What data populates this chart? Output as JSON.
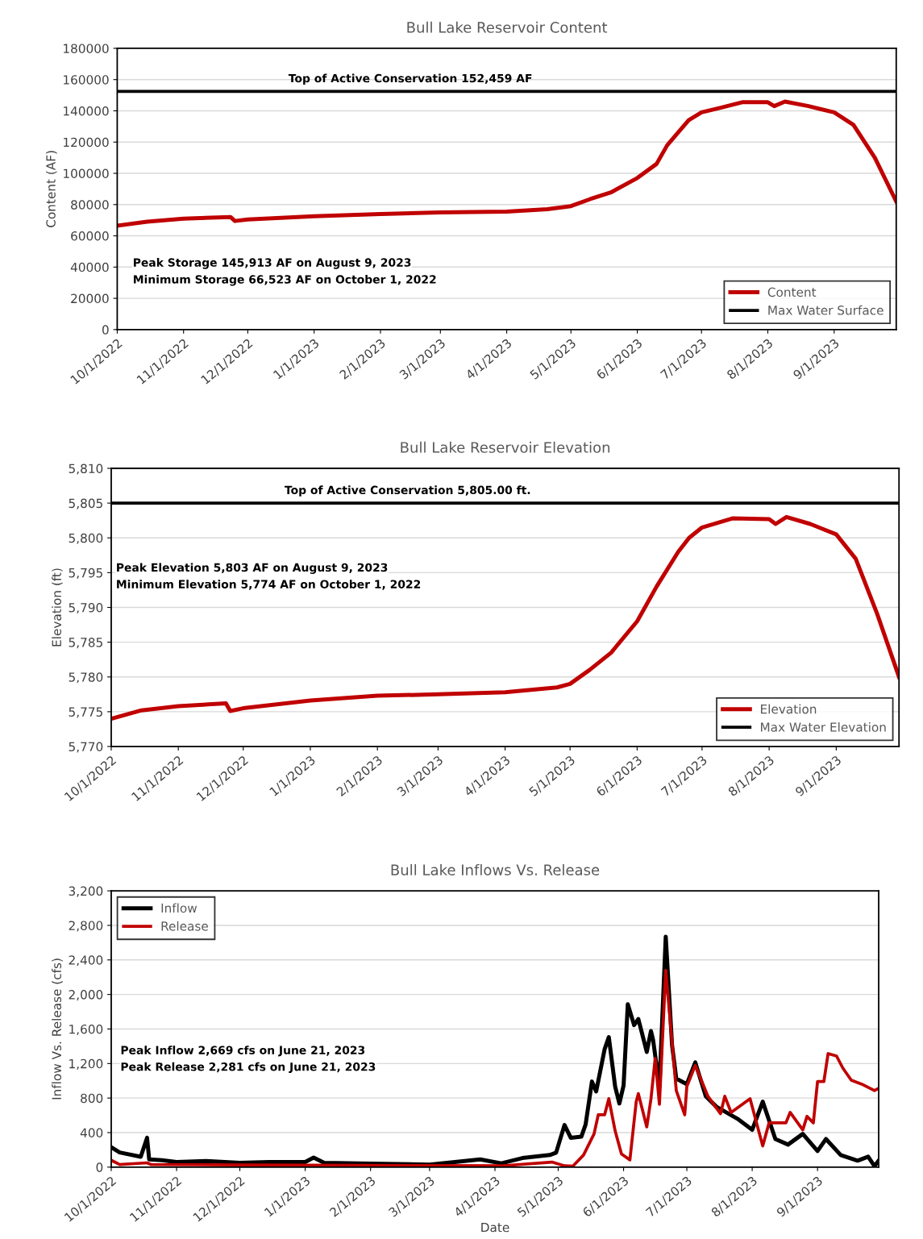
{
  "chart_data": [
    {
      "type": "line",
      "title": "Bull Lake Reservoir Content",
      "ylabel": "Content (AF)",
      "xlim": [
        "2022-10-01",
        "2023-09-30"
      ],
      "xticks": [
        {
          "value": "2022-10-01",
          "label": "10/1/2022"
        },
        {
          "value": "2022-11-01",
          "label": "11/1/2022"
        },
        {
          "value": "2022-12-01",
          "label": "12/1/2022"
        },
        {
          "value": "2023-01-01",
          "label": "1/1/2023"
        },
        {
          "value": "2023-02-01",
          "label": "2/1/2023"
        },
        {
          "value": "2023-03-01",
          "label": "3/1/2023"
        },
        {
          "value": "2023-04-01",
          "label": "4/1/2023"
        },
        {
          "value": "2023-05-01",
          "label": "5/1/2023"
        },
        {
          "value": "2023-06-01",
          "label": "6/1/2023"
        },
        {
          "value": "2023-07-01",
          "label": "7/1/2023"
        },
        {
          "value": "2023-08-01",
          "label": "8/1/2023"
        },
        {
          "value": "2023-09-01",
          "label": "9/1/2023"
        }
      ],
      "ylim": [
        0,
        180000
      ],
      "yticks": [
        0,
        20000,
        40000,
        60000,
        80000,
        100000,
        120000,
        140000,
        160000,
        180000
      ],
      "grid": "y",
      "legend": "bottom right",
      "line_style": "solid",
      "series": [
        {
          "name": "Content",
          "color": "#c00000",
          "x": [
            "2022-10-01",
            "2022-10-15",
            "2022-11-01",
            "2022-11-23",
            "2022-11-25",
            "2022-12-01",
            "2023-01-01",
            "2023-02-01",
            "2023-03-01",
            "2023-04-01",
            "2023-04-20",
            "2023-05-01",
            "2023-05-10",
            "2023-05-20",
            "2023-06-01",
            "2023-06-10",
            "2023-06-15",
            "2023-06-20",
            "2023-06-25",
            "2023-07-01",
            "2023-07-10",
            "2023-07-20",
            "2023-08-01",
            "2023-08-04",
            "2023-08-09",
            "2023-08-20",
            "2023-09-01",
            "2023-09-10",
            "2023-09-20",
            "2023-09-30"
          ],
          "values": [
            66523,
            69000,
            71000,
            72000,
            69500,
            70500,
            72500,
            74000,
            75000,
            75500,
            77000,
            79000,
            83500,
            88000,
            97000,
            106000,
            118000,
            126000,
            134000,
            139000,
            142000,
            145500,
            145500,
            143000,
            145913,
            143000,
            139000,
            131000,
            110000,
            82000
          ]
        },
        {
          "name": "Max Water Surface",
          "color": "#000000",
          "x": [
            "2022-10-01",
            "2023-09-30"
          ],
          "values": [
            152459,
            152459
          ]
        }
      ],
      "annotations": [
        {
          "text": "Top of Active Conservation 152,459 AF",
          "x": "2023-02-15",
          "y": 152459
        },
        "Peak Storage 145,913 AF on August 9, 2023",
        "Minimum Storage 66,523 AF on October 1, 2022"
      ]
    },
    {
      "type": "line",
      "title": "Bull Lake Reservoir Elevation",
      "ylabel": "Elevation (ft)",
      "xlim": [
        "2022-10-01",
        "2023-09-30"
      ],
      "xticks": [
        {
          "value": "2022-10-01",
          "label": "10/1/2022"
        },
        {
          "value": "2022-11-01",
          "label": "11/1/2022"
        },
        {
          "value": "2022-12-01",
          "label": "12/1/2022"
        },
        {
          "value": "2023-01-01",
          "label": "1/1/2023"
        },
        {
          "value": "2023-02-01",
          "label": "2/1/2023"
        },
        {
          "value": "2023-03-01",
          "label": "3/1/2023"
        },
        {
          "value": "2023-04-01",
          "label": "4/1/2023"
        },
        {
          "value": "2023-05-01",
          "label": "5/1/2023"
        },
        {
          "value": "2023-06-01",
          "label": "6/1/2023"
        },
        {
          "value": "2023-07-01",
          "label": "7/1/2023"
        },
        {
          "value": "2023-08-01",
          "label": "8/1/2023"
        },
        {
          "value": "2023-09-01",
          "label": "9/1/2023"
        }
      ],
      "ylim": [
        5770,
        5810
      ],
      "yticks": [
        {
          "value": 5770,
          "label": "5,770"
        },
        {
          "value": 5775,
          "label": "5,775"
        },
        {
          "value": 5780,
          "label": "5,780"
        },
        {
          "value": 5785,
          "label": "5,785"
        },
        {
          "value": 5790,
          "label": "5,790"
        },
        {
          "value": 5795,
          "label": "5,795"
        },
        {
          "value": 5800,
          "label": "5,800"
        },
        {
          "value": 5805,
          "label": "5,805"
        },
        {
          "value": 5810,
          "label": "5,810"
        }
      ],
      "grid": "y",
      "legend": "bottom right",
      "line_style": "solid",
      "series": [
        {
          "name": "Elevation",
          "color": "#c00000",
          "x": [
            "2022-10-01",
            "2022-10-15",
            "2022-11-01",
            "2022-11-23",
            "2022-11-25",
            "2022-12-01",
            "2023-01-01",
            "2023-02-01",
            "2023-03-01",
            "2023-04-01",
            "2023-04-25",
            "2023-05-01",
            "2023-05-10",
            "2023-05-20",
            "2023-06-01",
            "2023-06-10",
            "2023-06-20",
            "2023-06-25",
            "2023-07-01",
            "2023-07-15",
            "2023-08-01",
            "2023-08-04",
            "2023-08-09",
            "2023-08-20",
            "2023-09-01",
            "2023-09-10",
            "2023-09-20",
            "2023-09-30"
          ],
          "values": [
            5774,
            5775.2,
            5775.8,
            5776.2,
            5775.1,
            5775.5,
            5776.6,
            5777.3,
            5777.5,
            5777.8,
            5778.5,
            5779,
            5781,
            5783.5,
            5788,
            5793,
            5798,
            5800,
            5801.5,
            5802.8,
            5802.7,
            5802,
            5803,
            5802,
            5800.5,
            5797,
            5789,
            5780
          ]
        },
        {
          "name": "Max Water Elevation",
          "color": "#000000",
          "x": [
            "2022-10-01",
            "2023-09-30"
          ],
          "values": [
            5805,
            5805
          ]
        }
      ],
      "annotations": [
        {
          "text": "Top of Active Conservation 5,805.00 ft.",
          "x": "2023-02-15",
          "y": 5805
        },
        "Peak Elevation 5,803 AF on August 9, 2023",
        "Minimum Elevation 5,774 AF on October 1, 2022"
      ]
    },
    {
      "type": "line",
      "title": "Bull Lake Inflows Vs. Release",
      "xlabel": "Date",
      "ylabel": "Inflow Vs. Release (cfs)",
      "xlim": [
        "2022-10-01",
        "2023-09-30"
      ],
      "xticks": [
        {
          "value": "2022-10-01",
          "label": "10/1/2022"
        },
        {
          "value": "2022-11-01",
          "label": "11/1/2022"
        },
        {
          "value": "2022-12-01",
          "label": "12/1/2022"
        },
        {
          "value": "2023-01-01",
          "label": "1/1/2023"
        },
        {
          "value": "2023-02-01",
          "label": "2/1/2023"
        },
        {
          "value": "2023-03-01",
          "label": "3/1/2023"
        },
        {
          "value": "2023-04-01",
          "label": "4/1/2023"
        },
        {
          "value": "2023-05-01",
          "label": "5/1/2023"
        },
        {
          "value": "2023-06-01",
          "label": "6/1/2023"
        },
        {
          "value": "2023-07-01",
          "label": "7/1/2023"
        },
        {
          "value": "2023-08-01",
          "label": "8/1/2023"
        },
        {
          "value": "2023-09-01",
          "label": "9/1/2023"
        }
      ],
      "ylim": [
        0,
        3200
      ],
      "yticks": [
        0,
        400,
        800,
        {
          "value": 1200,
          "label": "1,200"
        },
        {
          "value": 1600,
          "label": "1,600"
        },
        {
          "value": 2000,
          "label": "2,000"
        },
        {
          "value": 2400,
          "label": "2,400"
        },
        {
          "value": 2800,
          "label": "2,800"
        },
        {
          "value": 3200,
          "label": "3,200"
        }
      ],
      "grid": "y",
      "legend": "top left",
      "line_style": "solid",
      "series": [
        {
          "name": "Inflow",
          "color": "#000000",
          "x": [
            "2022-10-01",
            "2022-10-05",
            "2022-10-15",
            "2022-10-18",
            "2022-10-19",
            "2022-10-25",
            "2022-11-01",
            "2022-11-15",
            "2022-12-01",
            "2022-12-15",
            "2023-01-01",
            "2023-01-05",
            "2023-01-10",
            "2023-02-01",
            "2023-03-01",
            "2023-03-25",
            "2023-04-04",
            "2023-04-14",
            "2023-04-27",
            "2023-04-30",
            "2023-05-04",
            "2023-05-07",
            "2023-05-12",
            "2023-05-14",
            "2023-05-17",
            "2023-05-19",
            "2023-05-23",
            "2023-05-25",
            "2023-05-28",
            "2023-05-30",
            "2023-06-01",
            "2023-06-03",
            "2023-06-06",
            "2023-06-08",
            "2023-06-12",
            "2023-06-14",
            "2023-06-15",
            "2023-06-18",
            "2023-06-21",
            "2023-06-24",
            "2023-06-26",
            "2023-07-01",
            "2023-07-05",
            "2023-07-10",
            "2023-07-15",
            "2023-07-25",
            "2023-08-01",
            "2023-08-06",
            "2023-08-12",
            "2023-08-18",
            "2023-08-25",
            "2023-09-01",
            "2023-09-05",
            "2023-09-12",
            "2023-09-20",
            "2023-09-25",
            "2023-09-28",
            "2023-09-30"
          ],
          "values": [
            230,
            170,
            120,
            340,
            90,
            80,
            60,
            70,
            50,
            60,
            60,
            110,
            50,
            40,
            30,
            90,
            44,
            105,
            140,
            168,
            488,
            339,
            354,
            494,
            992,
            876,
            1365,
            1505,
            933,
            737,
            945,
            1887,
            1645,
            1716,
            1334,
            1576,
            1474,
            933,
            2669,
            1412,
            1026,
            961,
            1213,
            821,
            700,
            560,
            432,
            758,
            326,
            261,
            385,
            187,
            326,
            140,
            75,
            121,
            12,
            75
          ]
        },
        {
          "name": "Release",
          "color": "#c00000",
          "x": [
            "2022-10-01",
            "2022-10-05",
            "2022-10-18",
            "2022-10-20",
            "2022-12-01",
            "2023-04-04",
            "2023-04-28",
            "2023-05-04",
            "2023-05-08",
            "2023-05-13",
            "2023-05-18",
            "2023-05-20",
            "2023-05-23",
            "2023-05-25",
            "2023-05-28",
            "2023-05-31",
            "2023-06-04",
            "2023-06-07",
            "2023-06-08",
            "2023-06-12",
            "2023-06-14",
            "2023-06-16",
            "2023-06-18",
            "2023-06-21",
            "2023-06-26",
            "2023-06-30",
            "2023-07-01",
            "2023-07-05",
            "2023-07-11",
            "2023-07-17",
            "2023-07-19",
            "2023-07-22",
            "2023-07-31",
            "2023-08-06",
            "2023-08-09",
            "2023-08-17",
            "2023-08-19",
            "2023-08-25",
            "2023-08-27",
            "2023-08-30",
            "2023-09-01",
            "2023-09-04",
            "2023-09-06",
            "2023-09-10",
            "2023-09-13",
            "2023-09-17",
            "2023-09-22",
            "2023-09-28",
            "2023-09-30"
          ],
          "values": [
            80,
            30,
            50,
            30,
            25,
            15,
            59,
            15,
            12,
            140,
            385,
            606,
            606,
            793,
            420,
            152,
            84,
            758,
            852,
            466,
            793,
            1259,
            728,
            2281,
            886,
            606,
            933,
            1178,
            821,
            619,
            821,
            634,
            793,
            245,
            513,
            513,
            634,
            432,
            588,
            513,
            992,
            992,
            1315,
            1287,
            1147,
            1007,
            961,
            886,
            914
          ]
        }
      ],
      "annotations": [
        "Peak Inflow 2,669 cfs on June 21, 2023",
        "Peak Release 2,281 cfs on June 21, 2023"
      ]
    }
  ]
}
